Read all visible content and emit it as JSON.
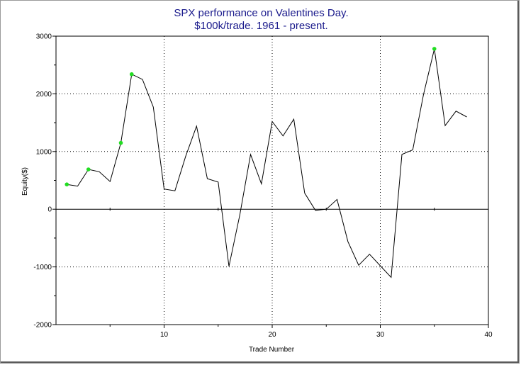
{
  "chart_data": {
    "type": "line",
    "title": "SPX performance on Valentines Day.",
    "subtitle": "$100k/trade. 1961 - present.",
    "xlabel": "Trade Number",
    "ylabel": "Equity($)",
    "xlim": [
      0,
      40
    ],
    "ylim": [
      -2000,
      3000
    ],
    "x_ticks": [
      10,
      20,
      30,
      40
    ],
    "y_ticks": [
      3000,
      2000,
      1000,
      0,
      -1000,
      -2000
    ],
    "grid": true,
    "series": [
      {
        "x": [
          1,
          2,
          3,
          4,
          5,
          6,
          7,
          8,
          9,
          10,
          11,
          12,
          13,
          14,
          15,
          16,
          17,
          18,
          19,
          20,
          21,
          22,
          23,
          24,
          25,
          26,
          27,
          28,
          29,
          30,
          31,
          32,
          33,
          34,
          35,
          36,
          37,
          38
        ],
        "values": [
          430,
          400,
          690,
          650,
          480,
          1150,
          2340,
          2250,
          1770,
          350,
          320,
          920,
          1440,
          530,
          470,
          -990,
          -100,
          950,
          440,
          1520,
          1270,
          1560,
          280,
          -20,
          0,
          170,
          -560,
          -970,
          -780,
          -980,
          -1180,
          950,
          1030,
          1990,
          2780,
          1450,
          1700,
          1600
        ]
      }
    ],
    "highlight_x": [
      1,
      3,
      6,
      7,
      35
    ],
    "colors": {
      "line": "#000000",
      "highlight": "#22dd22",
      "title": "#1a1a8c",
      "grid": "#000000"
    }
  }
}
